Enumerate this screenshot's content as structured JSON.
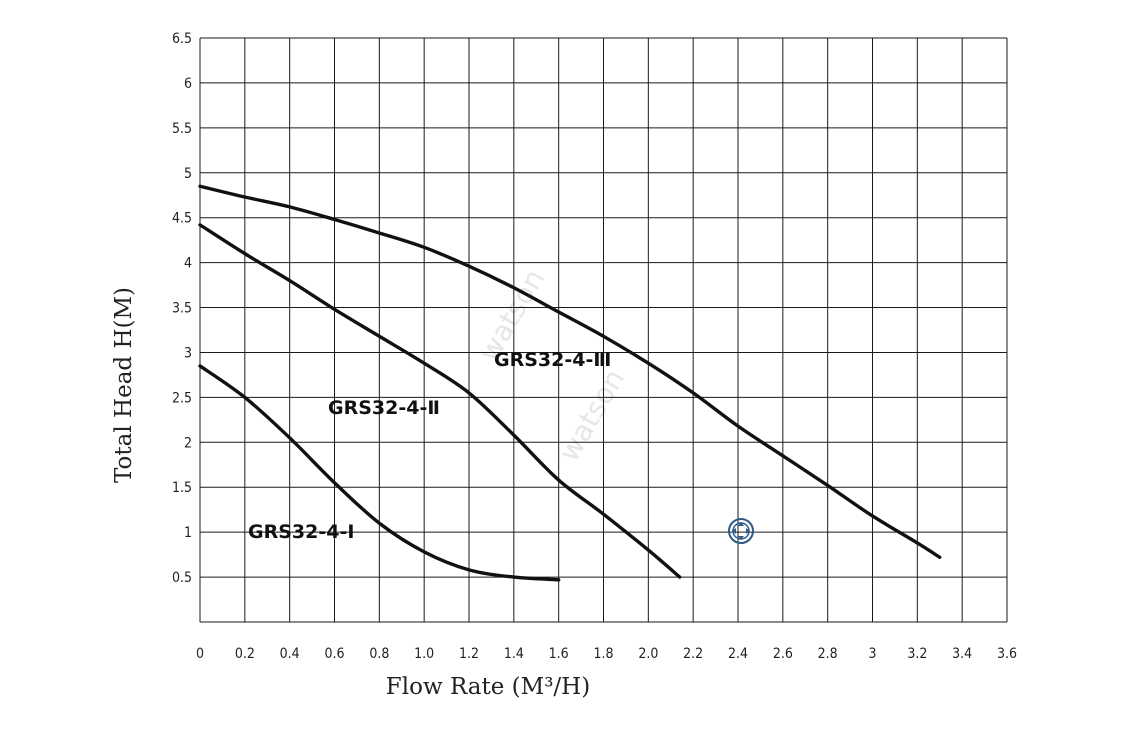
{
  "chart_data": {
    "type": "line",
    "xlabel": "Flow Rate (M³/H)",
    "ylabel": "Total Head H(M)",
    "xlim": [
      0,
      3.6
    ],
    "ylim": [
      0,
      6.5
    ],
    "x_ticks": [
      "0",
      "0.2",
      "0.4",
      "0.6",
      "0.8",
      "1.0",
      "1.2",
      "1.4",
      "1.6",
      "1.8",
      "2.0",
      "2.2",
      "2.4",
      "2.6",
      "2.8",
      "3",
      "3.2",
      "3.4",
      "3.6"
    ],
    "y_ticks": [
      "0.5",
      "1",
      "1.5",
      "2",
      "2.5",
      "3",
      "3.5",
      "4",
      "4.5",
      "5",
      "5.5",
      "6",
      "6.5"
    ],
    "grid": true,
    "watermark": [
      "watson",
      "watson"
    ],
    "series": [
      {
        "name": "GRS32-4-Ⅰ",
        "x": [
          0,
          0.2,
          0.4,
          0.6,
          0.8,
          1.0,
          1.2,
          1.4,
          1.6
        ],
        "y": [
          2.85,
          2.5,
          2.05,
          1.55,
          1.1,
          0.78,
          0.58,
          0.5,
          0.47
        ]
      },
      {
        "name": "GRS32-4-Ⅱ",
        "x": [
          0,
          0.2,
          0.4,
          0.6,
          0.8,
          1.0,
          1.2,
          1.4,
          1.6,
          1.8,
          2.0,
          2.14
        ],
        "y": [
          4.42,
          4.1,
          3.8,
          3.48,
          3.18,
          2.88,
          2.55,
          2.08,
          1.58,
          1.2,
          0.8,
          0.5
        ]
      },
      {
        "name": "GRS32-4-Ⅲ",
        "x": [
          0,
          0.2,
          0.4,
          0.6,
          0.8,
          1.0,
          1.2,
          1.4,
          1.6,
          1.8,
          2.0,
          2.2,
          2.4,
          2.6,
          2.8,
          3.0,
          3.2,
          3.3
        ],
        "y": [
          4.85,
          4.73,
          4.62,
          4.48,
          4.33,
          4.17,
          3.96,
          3.72,
          3.45,
          3.18,
          2.88,
          2.55,
          2.18,
          1.85,
          1.52,
          1.18,
          0.88,
          0.72
        ]
      }
    ]
  }
}
